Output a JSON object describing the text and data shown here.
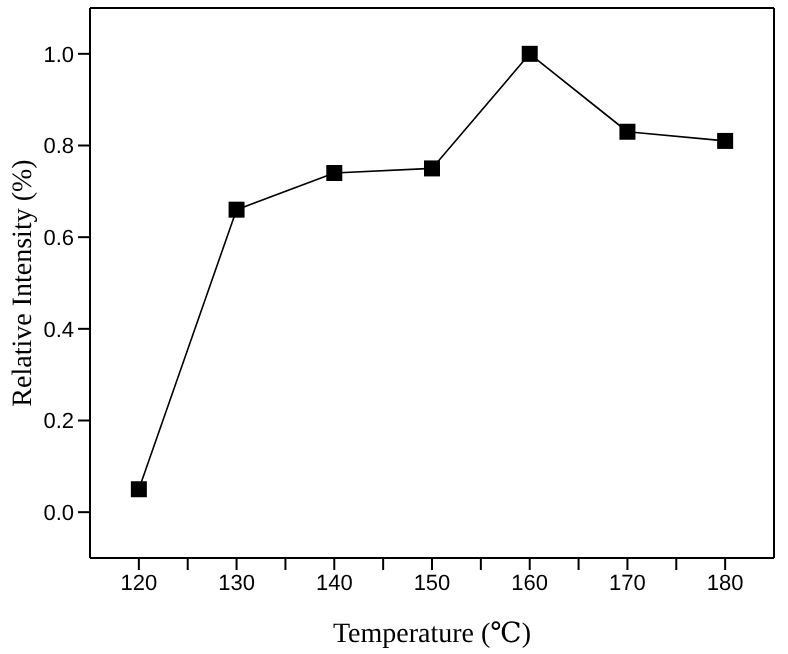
{
  "chart_data": {
    "type": "line",
    "xlabel": "Temperature (℃)",
    "ylabel": "Relative Intensity (%)",
    "x": [
      120,
      130,
      140,
      150,
      160,
      170,
      180
    ],
    "series": [
      {
        "color": "#000000",
        "values": [
          0.05,
          0.66,
          0.74,
          0.75,
          1.0,
          0.83,
          0.81
        ]
      }
    ],
    "xlim": [
      115,
      185
    ],
    "xticks": [
      120,
      {
        "value": 125,
        "label": null
      },
      130,
      {
        "value": 135,
        "label": null
      },
      140,
      {
        "value": 145,
        "label": null
      },
      150,
      {
        "value": 155,
        "label": null
      },
      160,
      {
        "value": 165,
        "label": null
      },
      170,
      {
        "value": 175,
        "label": null
      },
      180
    ],
    "ylim": [
      -0.1,
      1.1
    ],
    "yticks": [
      {
        "value": 0,
        "label": "0.0"
      },
      {
        "value": 0.2,
        "label": "0.2"
      },
      {
        "value": 0.4,
        "label": "0.4"
      },
      {
        "value": 0.6,
        "label": "0.6"
      },
      {
        "value": 0.8,
        "label": "0.8"
      },
      {
        "value": 1.0,
        "label": "1.0"
      }
    ],
    "marker": "square",
    "line_style": "solid",
    "grid": false,
    "legend": false
  }
}
